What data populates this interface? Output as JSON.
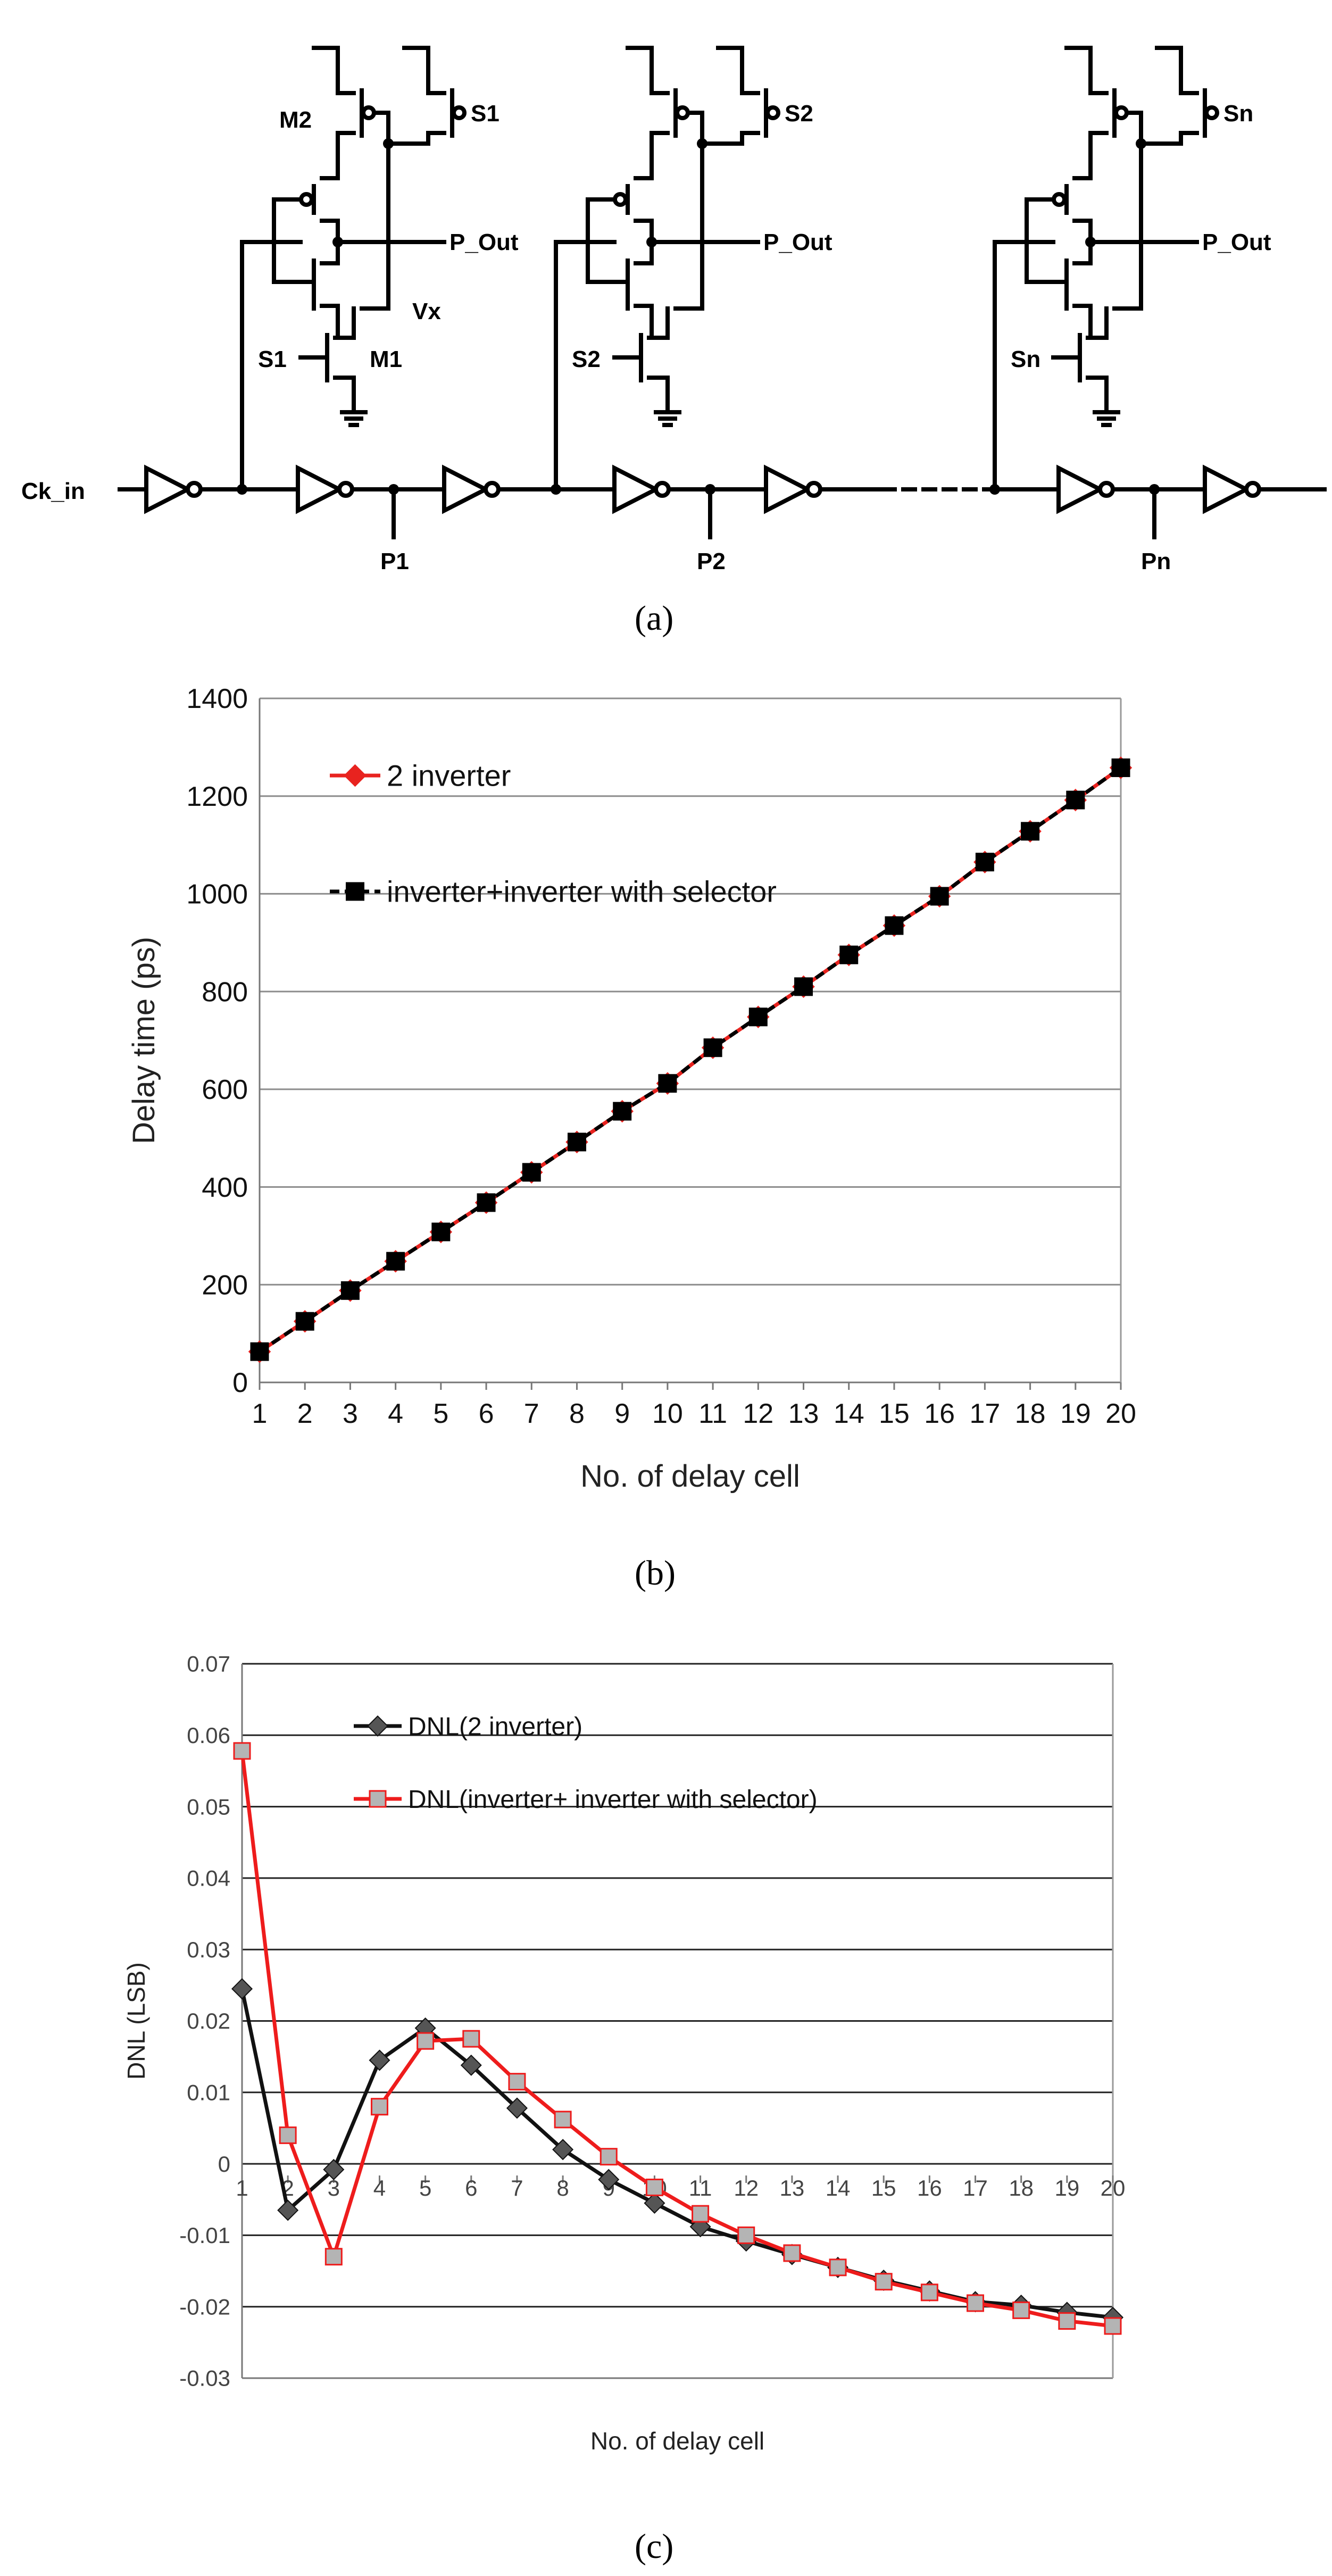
{
  "circuit": {
    "input_label": "Ck_in",
    "output_label": "P_Out",
    "node_label": "Vx",
    "transistor_labels": [
      "M2",
      "M1"
    ],
    "cells": [
      {
        "select": "S1",
        "tap": "P1"
      },
      {
        "select": "S2",
        "tap": "P2"
      },
      {
        "select": "Sn",
        "tap": "Pn"
      }
    ]
  },
  "captions": {
    "a": "(a)",
    "b": "(b)",
    "c": "(c)"
  },
  "chart_data": [
    {
      "type": "line",
      "title": "",
      "xlabel": "No. of delay cell",
      "ylabel": "Delay time (ps)",
      "ylim": [
        0,
        1400
      ],
      "yticks": [
        0,
        200,
        400,
        600,
        800,
        1000,
        1200,
        1400
      ],
      "categories": [
        "1",
        "2",
        "3",
        "4",
        "5",
        "6",
        "7",
        "8",
        "9",
        "10",
        "11",
        "12",
        "13",
        "14",
        "15",
        "16",
        "17",
        "18",
        "19",
        "20"
      ],
      "grid": true,
      "legend": "top-left",
      "series": [
        {
          "name": "2 inverter",
          "color": "#e8231f",
          "marker": "diamond",
          "values": [
            63,
            125,
            188,
            248,
            308,
            368,
            430,
            492,
            555,
            612,
            685,
            748,
            810,
            875,
            935,
            995,
            1065,
            1128,
            1192,
            1258
          ]
        },
        {
          "name": "inverter+inverter with selector",
          "color": "#000000",
          "marker": "square",
          "dash": true,
          "values": [
            63,
            125,
            188,
            248,
            308,
            368,
            430,
            492,
            555,
            612,
            685,
            748,
            810,
            875,
            935,
            995,
            1065,
            1128,
            1192,
            1258
          ]
        }
      ]
    },
    {
      "type": "line",
      "title": "",
      "xlabel": "No. of delay cell",
      "ylabel": "DNL (LSB)",
      "ylim": [
        -0.03,
        0.07
      ],
      "yticks": [
        "-0.03",
        "-0.02",
        "-0.01",
        "0",
        "0.01",
        "0.02",
        "0.03",
        "0.04",
        "0.05",
        "0.06",
        "0.07"
      ],
      "categories": [
        "1",
        "2",
        "3",
        "4",
        "5",
        "6",
        "7",
        "8",
        "9",
        "10",
        "11",
        "12",
        "13",
        "14",
        "15",
        "16",
        "17",
        "18",
        "19",
        "20"
      ],
      "grid": true,
      "legend": "top-left",
      "series": [
        {
          "name": "DNL(2 inverter)",
          "color": "#111111",
          "marker": "diamond",
          "values": [
            0.0245,
            -0.0065,
            -0.0008,
            0.0145,
            0.019,
            0.0138,
            0.0078,
            0.002,
            -0.0022,
            -0.0055,
            -0.0088,
            -0.0108,
            -0.0127,
            -0.0145,
            -0.0163,
            -0.0178,
            -0.0193,
            -0.0198,
            -0.0208,
            -0.0215
          ]
        },
        {
          "name": "DNL(inverter+ inverter with selector)",
          "color": "#ee1c1c",
          "marker": "square",
          "marker_fill": "#b4b4b4",
          "values": [
            0.0578,
            0.004,
            -0.013,
            0.008,
            0.0172,
            0.0175,
            0.0115,
            0.0062,
            0.001,
            -0.0033,
            -0.007,
            -0.01,
            -0.0125,
            -0.0145,
            -0.0165,
            -0.018,
            -0.0195,
            -0.0205,
            -0.022,
            -0.0227
          ]
        }
      ]
    }
  ]
}
